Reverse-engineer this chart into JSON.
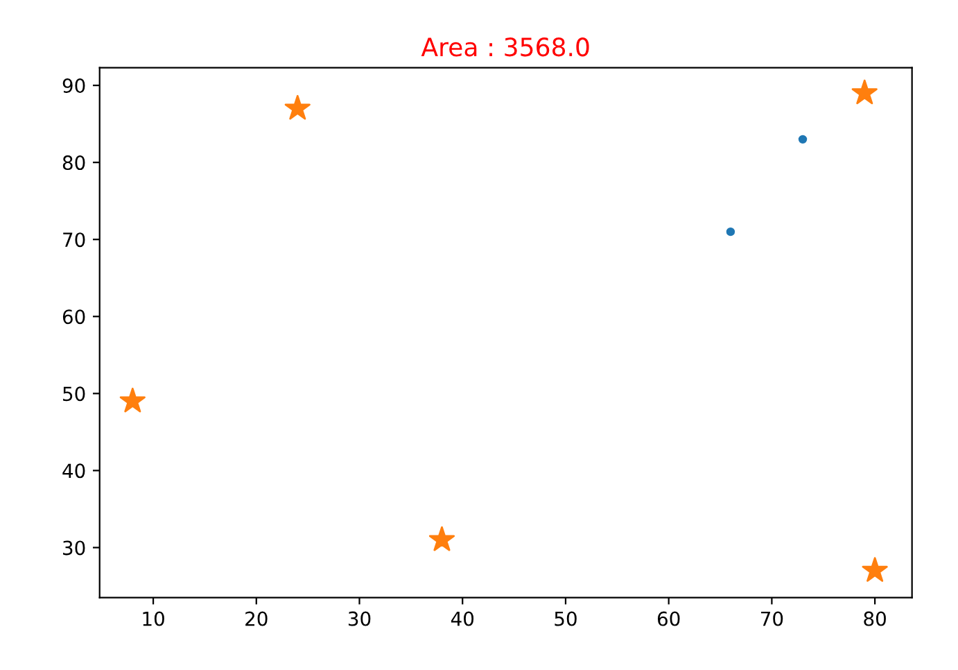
{
  "chart_data": {
    "type": "scatter",
    "title": "Area : 3568.0",
    "series": [
      {
        "color": "#1f77b4",
        "marker": "circle",
        "x": [
          66,
          73
        ],
        "values": [
          71,
          83
        ]
      },
      {
        "color": "#ff7f0e",
        "marker": "star",
        "x": [
          8,
          24,
          38,
          79,
          80
        ],
        "values": [
          49,
          87,
          31,
          89,
          27
        ]
      }
    ],
    "xlim": [
      4.8,
      83.6
    ],
    "ylim": [
      23.5,
      92.3
    ],
    "xticks": [
      10,
      20,
      30,
      40,
      50,
      60,
      70,
      80
    ],
    "yticks": [
      30,
      40,
      50,
      60,
      70,
      80,
      90
    ],
    "grid": false,
    "legend": false
  }
}
